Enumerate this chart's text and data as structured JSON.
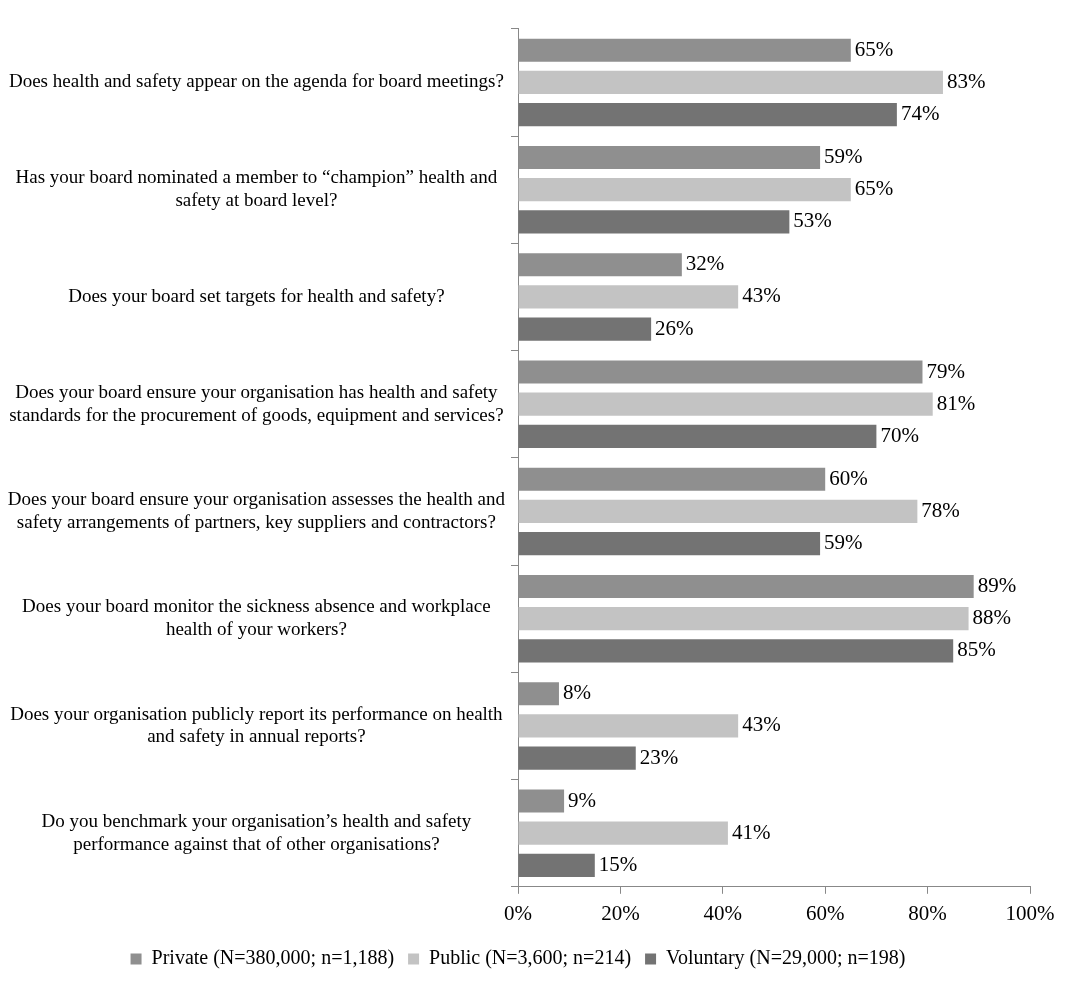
{
  "chart_data": {
    "type": "bar",
    "orientation": "horizontal",
    "categories": [
      "Does health and safety appear on the agenda for board meetings?",
      "Has your board nominated a member to “champion” health and safety at board level?",
      "Does your board set targets for health and safety?",
      "Does your board ensure your organisation has health and safety standards for the procurement of goods, equipment and services?",
      "Does your board ensure your organisation assesses the health and safety arrangements of partners, key suppliers and contractors?",
      "Does your board monitor the sickness absence and workplace health of your workers?",
      "Does your organisation publicly report its performance on health and safety in annual reports?",
      "Do you benchmark your organisation’s health and safety performance against that of other organisations?"
    ],
    "series": [
      {
        "name": "Private (N=380,000; n=1,188)",
        "color": "#8f8f8f",
        "values": [
          65,
          59,
          32,
          79,
          60,
          89,
          8,
          9
        ],
        "value_labels": [
          "65%",
          "59%",
          "32%",
          "79%",
          "60%",
          "89%",
          "8%",
          "9%"
        ]
      },
      {
        "name": "Public (N=3,600; n=214)",
        "color": "#c3c3c3",
        "values": [
          83,
          65,
          43,
          81,
          78,
          88,
          43,
          41
        ],
        "value_labels": [
          "83%",
          "65%",
          "43%",
          "81%",
          "78%",
          "88%",
          "43%",
          "41%"
        ]
      },
      {
        "name": "Voluntary (N=29,000; n=198)",
        "color": "#737373",
        "values": [
          74,
          53,
          26,
          70,
          59,
          85,
          23,
          15
        ],
        "value_labels": [
          "74%",
          "53%",
          "26%",
          "70%",
          "59%",
          "85%",
          "23%",
          "15%"
        ]
      }
    ],
    "xlim": [
      0,
      100
    ],
    "xticks": [
      {
        "value": 0,
        "label": "0%"
      },
      {
        "value": 20,
        "label": "20%"
      },
      {
        "value": 40,
        "label": "40%"
      },
      {
        "value": 60,
        "label": "60%"
      },
      {
        "value": 80,
        "label": "80%"
      },
      {
        "value": 100,
        "label": "100%"
      }
    ],
    "grid": false,
    "legend": "bottom"
  }
}
